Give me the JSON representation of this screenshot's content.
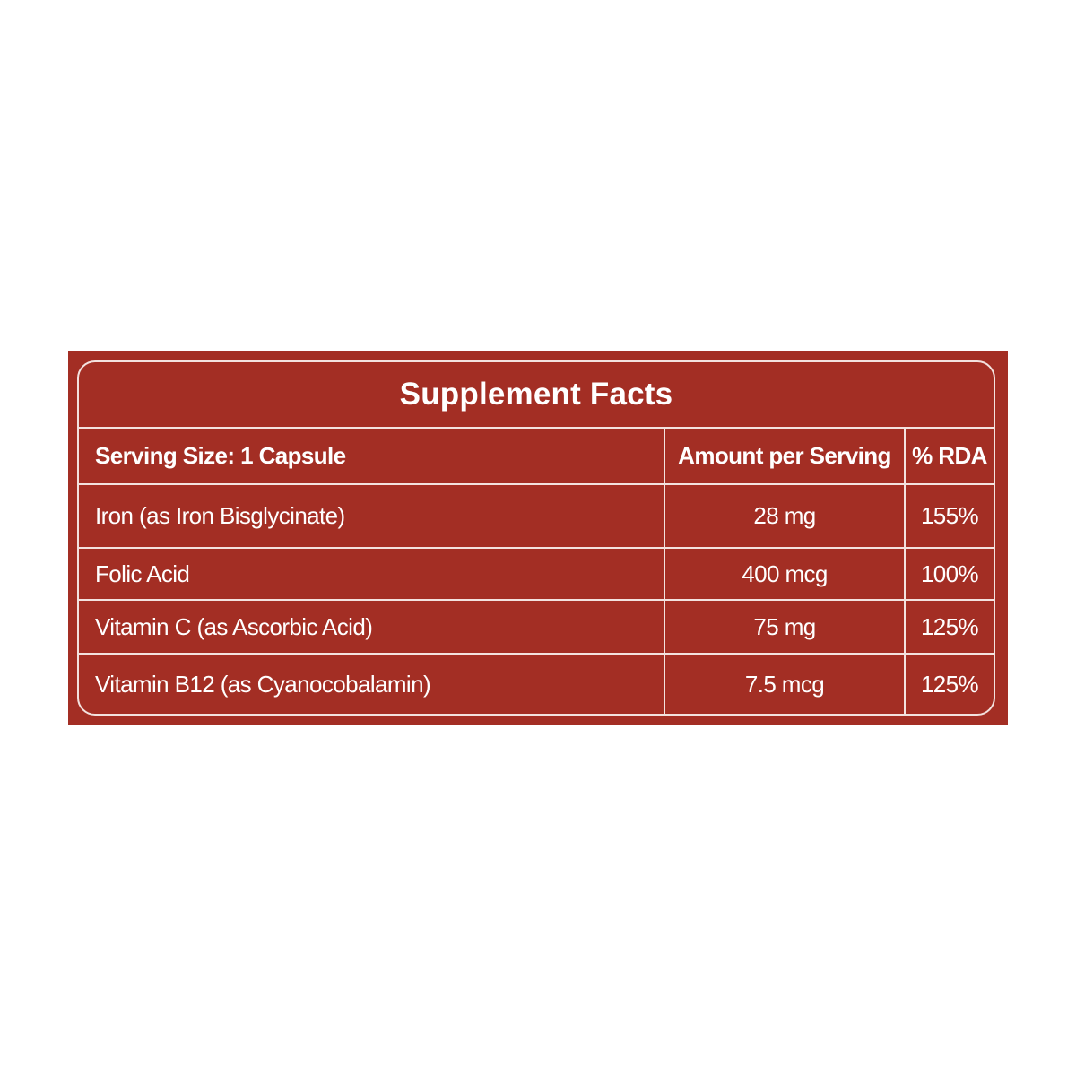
{
  "title": "Supplement Facts",
  "header": {
    "serving_size": "Serving Size: 1 Capsule",
    "amount_col": "Amount per Serving",
    "rda_col": "% RDA"
  },
  "rows": [
    {
      "nutrient": "Iron (as Iron Bisglycinate)",
      "amount": "28 mg",
      "rda": "155%"
    },
    {
      "nutrient": "Folic Acid",
      "amount": "400 mcg",
      "rda": "100%"
    },
    {
      "nutrient": "Vitamin C (as Ascorbic Acid)",
      "amount": "75 mg",
      "rda": "125%"
    },
    {
      "nutrient": "Vitamin B12 (as Cyanocobalamin)",
      "amount": "7.5 mcg",
      "rda": "125%"
    }
  ],
  "colors": {
    "panel": "#a32e24",
    "lines": "#f3e2df",
    "text": "#ffffff"
  }
}
